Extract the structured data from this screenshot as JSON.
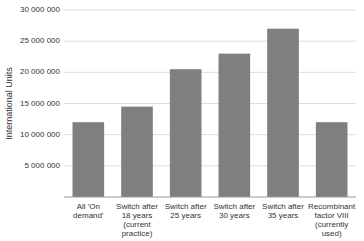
{
  "chart_data": {
    "type": "bar",
    "categories": [
      "All 'On\ndemand'",
      "Switch after\n18 years\n(current\npractice)",
      "Switch after\n25 years",
      "Switch after\n30 years",
      "Switch after\n35 years",
      "Recombinant\nfactor VIII\n(currently\nused)"
    ],
    "values": [
      12000000,
      14500000,
      20500000,
      23000000,
      27000000,
      12000000
    ],
    "color": "#7f7f7f",
    "ylabel": "International Units",
    "ylim": [
      0,
      30000000
    ],
    "yticks": [
      {
        "value": 5000000,
        "label": "5 000 000"
      },
      {
        "value": 10000000,
        "label": "10 000 000"
      },
      {
        "value": 15000000,
        "label": "15 000 000"
      },
      {
        "value": 20000000,
        "label": "20 000 000"
      },
      {
        "value": 25000000,
        "label": "25 000 000"
      },
      {
        "value": 30000000,
        "label": "30 000 000"
      }
    ],
    "grid": true
  }
}
